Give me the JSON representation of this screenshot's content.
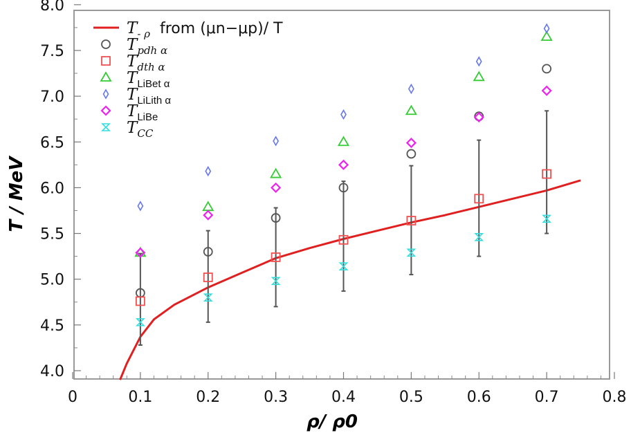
{
  "chart_data": {
    "type": "scatter",
    "title": "",
    "xlabel": "ρ/ ρ0",
    "ylabel": "T / MeV",
    "xlim": [
      0,
      0.8
    ],
    "ylim": [
      3.9,
      8.0
    ],
    "x_ticks": [
      0,
      0.1,
      0.2,
      0.3,
      0.4,
      0.5,
      0.6,
      0.7,
      0.8
    ],
    "x_tick_labels": [
      "0",
      "0.1",
      "0.2",
      "0.3",
      "0.4",
      "0.5",
      "0.6",
      "0.7",
      "0.8"
    ],
    "y_ticks": [
      4.0,
      4.5,
      5.0,
      5.5,
      6.0,
      6.5,
      7.0,
      7.5,
      8.0
    ],
    "y_tick_labels": [
      "4.0",
      "4.5",
      "5.0",
      "5.5",
      "6.0",
      "6.5",
      "7.0",
      "7.5",
      "8.0"
    ],
    "grid": false,
    "legend_position": "top-left",
    "curve": {
      "name": "T- ρ  from (μn−μp)/ T",
      "color": "#e02020",
      "x": [
        0.07,
        0.08,
        0.1,
        0.12,
        0.15,
        0.2,
        0.25,
        0.3,
        0.35,
        0.4,
        0.45,
        0.5,
        0.55,
        0.6,
        0.65,
        0.7,
        0.75
      ],
      "y": [
        3.9,
        4.08,
        4.37,
        4.56,
        4.72,
        4.91,
        5.07,
        5.23,
        5.34,
        5.44,
        5.53,
        5.62,
        5.7,
        5.79,
        5.88,
        5.97,
        6.08
      ]
    },
    "series": [
      {
        "name": "T_pdh α",
        "marker": "circle",
        "color": "#555555",
        "x": [
          0.1,
          0.2,
          0.3,
          0.4,
          0.5,
          0.6,
          0.7
        ],
        "y": [
          4.85,
          5.3,
          5.67,
          6.0,
          6.37,
          6.78,
          7.3
        ],
        "yerr_low": [
          4.28,
          4.53,
          4.7,
          4.87,
          5.05,
          5.25,
          5.5
        ],
        "yerr_high": [
          5.28,
          5.53,
          5.78,
          6.07,
          6.24,
          6.52,
          6.84
        ]
      },
      {
        "name": "T_dth α",
        "marker": "square",
        "color": "#f05050",
        "x": [
          0.1,
          0.2,
          0.3,
          0.4,
          0.5,
          0.6,
          0.7
        ],
        "y": [
          4.76,
          5.02,
          5.24,
          5.43,
          5.64,
          5.88,
          6.15
        ]
      },
      {
        "name": "T_LiBet α",
        "marker": "triangle",
        "color": "#33cc33",
        "x": [
          0.1,
          0.2,
          0.3,
          0.4,
          0.5,
          0.6,
          0.7
        ],
        "y": [
          5.29,
          5.79,
          6.15,
          6.5,
          6.84,
          7.21,
          7.65
        ]
      },
      {
        "name": "T_LiLith α",
        "marker": "thin-diamond",
        "color": "#6677ee",
        "x": [
          0.1,
          0.2,
          0.3,
          0.4,
          0.5,
          0.6,
          0.7
        ],
        "y": [
          5.8,
          6.18,
          6.51,
          6.8,
          7.08,
          7.38,
          7.74
        ]
      },
      {
        "name": "T_LiBe",
        "marker": "diamond",
        "color": "#ee22ee",
        "x": [
          0.1,
          0.2,
          0.3,
          0.4,
          0.5,
          0.6,
          0.7
        ],
        "y": [
          5.29,
          5.7,
          6.0,
          6.25,
          6.49,
          6.77,
          7.06
        ]
      },
      {
        "name": "T_CC",
        "marker": "hourglass",
        "color": "#33dddd",
        "x": [
          0.1,
          0.2,
          0.3,
          0.4,
          0.5,
          0.6,
          0.7
        ],
        "y": [
          4.53,
          4.8,
          4.98,
          5.14,
          5.29,
          5.46,
          5.66
        ]
      }
    ],
    "legend": [
      {
        "main": "T",
        "sub": "- ρ",
        "rest": "from (μn−μp)/ T"
      },
      {
        "main": "T",
        "sub": "pdh α"
      },
      {
        "main": "T",
        "sub": "dth α"
      },
      {
        "main": "T",
        "sub": "LiBet α"
      },
      {
        "main": "T",
        "sub": "LiLith α"
      },
      {
        "main": "T",
        "sub": "LiBe"
      },
      {
        "main": "T",
        "sub": "CC"
      }
    ]
  }
}
